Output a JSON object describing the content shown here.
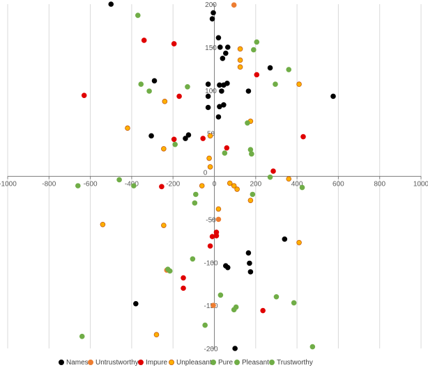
{
  "chart_data": {
    "type": "scatter",
    "title": "",
    "xlabel": "",
    "ylabel": "",
    "xlim": [
      -1000,
      1000
    ],
    "ylim": [
      -200,
      200
    ],
    "x_ticks": [
      -1000,
      -800,
      -600,
      -400,
      -200,
      0,
      200,
      400,
      600,
      800,
      1000
    ],
    "y_ticks": [
      -200,
      -150,
      -100,
      -50,
      0,
      50,
      100,
      150,
      200
    ],
    "x_tick_labels": [
      "-1000",
      "-800",
      "-600",
      "-400",
      "-200",
      "0",
      "200",
      "400",
      "600",
      "800",
      "1000"
    ],
    "y_tick_labels": [
      "-200",
      "-150",
      "-100",
      "-50",
      "0",
      "50",
      "100",
      "150",
      "200"
    ],
    "grid": "vertical",
    "legend_position": "bottom",
    "series": [
      {
        "name": "Names",
        "color": "#000000",
        "marker": "circle",
        "stroke": "#000000",
        "points": [
          [
            -500,
            200
          ],
          [
            -5,
            190
          ],
          [
            -10,
            183
          ],
          [
            20,
            161
          ],
          [
            28,
            150
          ],
          [
            65,
            150
          ],
          [
            55,
            143
          ],
          [
            40,
            137
          ],
          [
            270,
            126
          ],
          [
            -290,
            111
          ],
          [
            -30,
            107
          ],
          [
            25,
            106
          ],
          [
            45,
            106
          ],
          [
            62,
            108
          ],
          [
            35,
            99
          ],
          [
            165,
            99
          ],
          [
            -30,
            93
          ],
          [
            575,
            93
          ],
          [
            45,
            83
          ],
          [
            25,
            81
          ],
          [
            -30,
            80
          ],
          [
            20,
            69
          ],
          [
            -305,
            47
          ],
          [
            -125,
            48
          ],
          [
            -140,
            44
          ],
          [
            340,
            -73
          ],
          [
            165,
            -89
          ],
          [
            170,
            -101
          ],
          [
            175,
            -111
          ],
          [
            55,
            -104
          ],
          [
            65,
            -106
          ],
          [
            -380,
            -148
          ],
          [
            100,
            -200
          ]
        ]
      },
      {
        "name": "Untrustworthy",
        "color": "#ED7D31",
        "marker": "circle",
        "stroke": "#ED7D31",
        "points": [
          [
            95,
            199
          ],
          [
            20,
            -50
          ],
          [
            -230,
            -109
          ],
          [
            -5,
            -150
          ]
        ]
      },
      {
        "name": "Impure",
        "color": "#E00000",
        "marker": "circle",
        "stroke": "#E00000",
        "points": [
          [
            -340,
            158
          ],
          [
            -195,
            154
          ],
          [
            -630,
            94
          ],
          [
            -170,
            93
          ],
          [
            205,
            118
          ],
          [
            430,
            46
          ],
          [
            -195,
            43
          ],
          [
            -55,
            44
          ],
          [
            60,
            33
          ],
          [
            285,
            6
          ],
          [
            -255,
            -12
          ],
          [
            10,
            -69
          ],
          [
            10,
            -65
          ],
          [
            -10,
            -70
          ],
          [
            -20,
            -81
          ],
          [
            -150,
            -118
          ],
          [
            -150,
            -130
          ],
          [
            235,
            -156
          ]
        ]
      },
      {
        "name": "Unpleasant",
        "color": "#FFB000",
        "marker": "circle",
        "stroke": "#C55A11",
        "points": [
          [
            125,
            148
          ],
          [
            125,
            135
          ],
          [
            125,
            127
          ],
          [
            410,
            107
          ],
          [
            -240,
            87
          ],
          [
            -420,
            56
          ],
          [
            175,
            64
          ],
          [
            -20,
            47
          ],
          [
            -245,
            32
          ],
          [
            -25,
            21
          ],
          [
            -20,
            11
          ],
          [
            360,
            -3
          ],
          [
            -60,
            -11
          ],
          [
            75,
            -8
          ],
          [
            95,
            -11
          ],
          [
            110,
            -15
          ],
          [
            175,
            -28
          ],
          [
            20,
            -38
          ],
          [
            -540,
            -56
          ],
          [
            -245,
            -57
          ],
          [
            410,
            -77
          ],
          [
            -280,
            -184
          ]
        ]
      },
      {
        "name": "Pure",
        "color": "#70AD47",
        "marker": "circle",
        "stroke": "#70AD47",
        "points": [
          [
            -370,
            187
          ],
          [
            205,
            156
          ],
          [
            190,
            147
          ],
          [
            360,
            124
          ],
          [
            -355,
            107
          ],
          [
            295,
            107
          ],
          [
            -130,
            104
          ],
          [
            -315,
            99
          ],
          [
            160,
            62
          ],
          [
            -190,
            37
          ],
          [
            50,
            27
          ],
          [
            175,
            31
          ],
          [
            180,
            26
          ],
          [
            -460,
            -4
          ],
          [
            -660,
            -11
          ],
          [
            270,
            -1
          ],
          [
            -390,
            -11
          ],
          [
            -90,
            -21
          ],
          [
            425,
            -13
          ],
          [
            -95,
            -31
          ],
          [
            185,
            -21
          ],
          [
            -105,
            -96
          ],
          [
            -225,
            -108
          ],
          [
            -215,
            -110
          ],
          [
            30,
            -138
          ],
          [
            300,
            -140
          ],
          [
            105,
            -152
          ],
          [
            95,
            -155
          ],
          [
            385,
            -147
          ],
          [
            -45,
            -173
          ],
          [
            -640,
            -186
          ],
          [
            475,
            -198
          ]
        ]
      }
    ],
    "legend": [
      "Names",
      "Untrustworthy",
      "Impure",
      "Unpleasant",
      "Pure",
      "Pleasant",
      "Trustworthy"
    ],
    "legend_colors": {
      "Names": "#000000",
      "Untrustworthy": "#ED7D31",
      "Impure": "#E00000",
      "Unpleasant": "#FFB000",
      "Pure": "#70AD47",
      "Pleasant": "#70AD47",
      "Trustworthy": "#70AD47"
    },
    "legend_strokes": {
      "Unpleasant": "#C55A11"
    }
  }
}
